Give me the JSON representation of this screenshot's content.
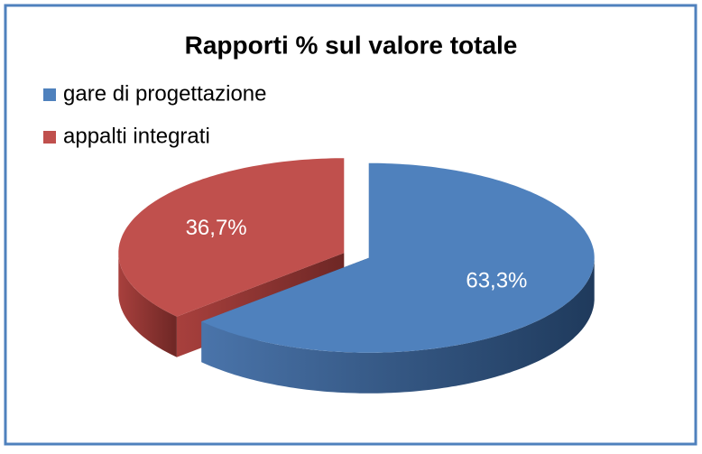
{
  "chart_data": {
    "type": "pie",
    "title": "Rapporti % sul valore totale",
    "categories": [
      "gare di progettazione",
      "appalti  integrati"
    ],
    "values": [
      63.3,
      36.7
    ],
    "value_labels": [
      "63,3%",
      "36,7%"
    ],
    "colors": [
      "#4f81bd",
      "#c0504d"
    ],
    "legend": "top-left"
  }
}
